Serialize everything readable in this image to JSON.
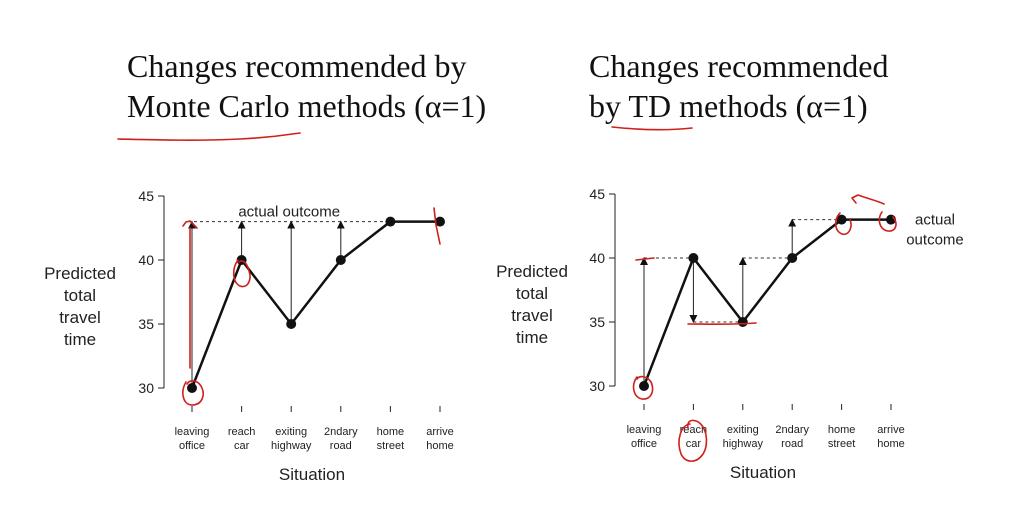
{
  "headings": {
    "left": {
      "line1": "Changes recommended by",
      "line2": "Monte Carlo methods (α=1)"
    },
    "right": {
      "line1": "Changes recommended",
      "line2": "by TD methods (α=1)"
    }
  },
  "annotation_color": "#d0201b",
  "chart_data": [
    {
      "type": "line",
      "title": "Changes recommended by Monte Carlo methods (α=1)",
      "ylabel": [
        "Predicted",
        "total",
        "travel",
        "time"
      ],
      "xlabel": "Situation",
      "ylim": [
        30,
        45
      ],
      "yticks": [
        30,
        35,
        40,
        45
      ],
      "categories": [
        [
          "leaving",
          "office"
        ],
        [
          "reach",
          "car"
        ],
        [
          "exiting",
          "highway"
        ],
        [
          "2ndary",
          "road"
        ],
        [
          "home",
          "street"
        ],
        [
          "arrive",
          "home"
        ]
      ],
      "values": [
        30,
        40,
        35,
        40,
        43,
        43
      ],
      "outcome_label": "actual outcome",
      "outcome_value": 43,
      "arrows": [
        {
          "from": 30,
          "to": 43
        },
        {
          "from": 40,
          "to": 43
        },
        {
          "from": 35,
          "to": 43
        },
        {
          "from": 40,
          "to": 43
        },
        {
          "from": 43,
          "to": 43
        },
        {
          "from": 43,
          "to": 43
        }
      ]
    },
    {
      "type": "line",
      "title": "Changes recommended by TD methods (α=1)",
      "ylabel": [
        "Predicted",
        "total",
        "travel",
        "time"
      ],
      "xlabel": "Situation",
      "ylim": [
        30,
        45
      ],
      "yticks": [
        30,
        35,
        40,
        45
      ],
      "categories": [
        [
          "leaving",
          "office"
        ],
        [
          "reach",
          "car"
        ],
        [
          "exiting",
          "highway"
        ],
        [
          "2ndary",
          "road"
        ],
        [
          "home",
          "street"
        ],
        [
          "arrive",
          "home"
        ]
      ],
      "values": [
        30,
        40,
        35,
        40,
        43,
        43
      ],
      "outcome_label": [
        "actual",
        "outcome"
      ],
      "outcome_value": 43,
      "arrows": [
        {
          "from": 30,
          "to": 40
        },
        {
          "from": 40,
          "to": 35
        },
        {
          "from": 35,
          "to": 40
        },
        {
          "from": 40,
          "to": 43
        },
        {
          "from": 43,
          "to": 43
        },
        {
          "from": 43,
          "to": 43
        }
      ]
    }
  ]
}
